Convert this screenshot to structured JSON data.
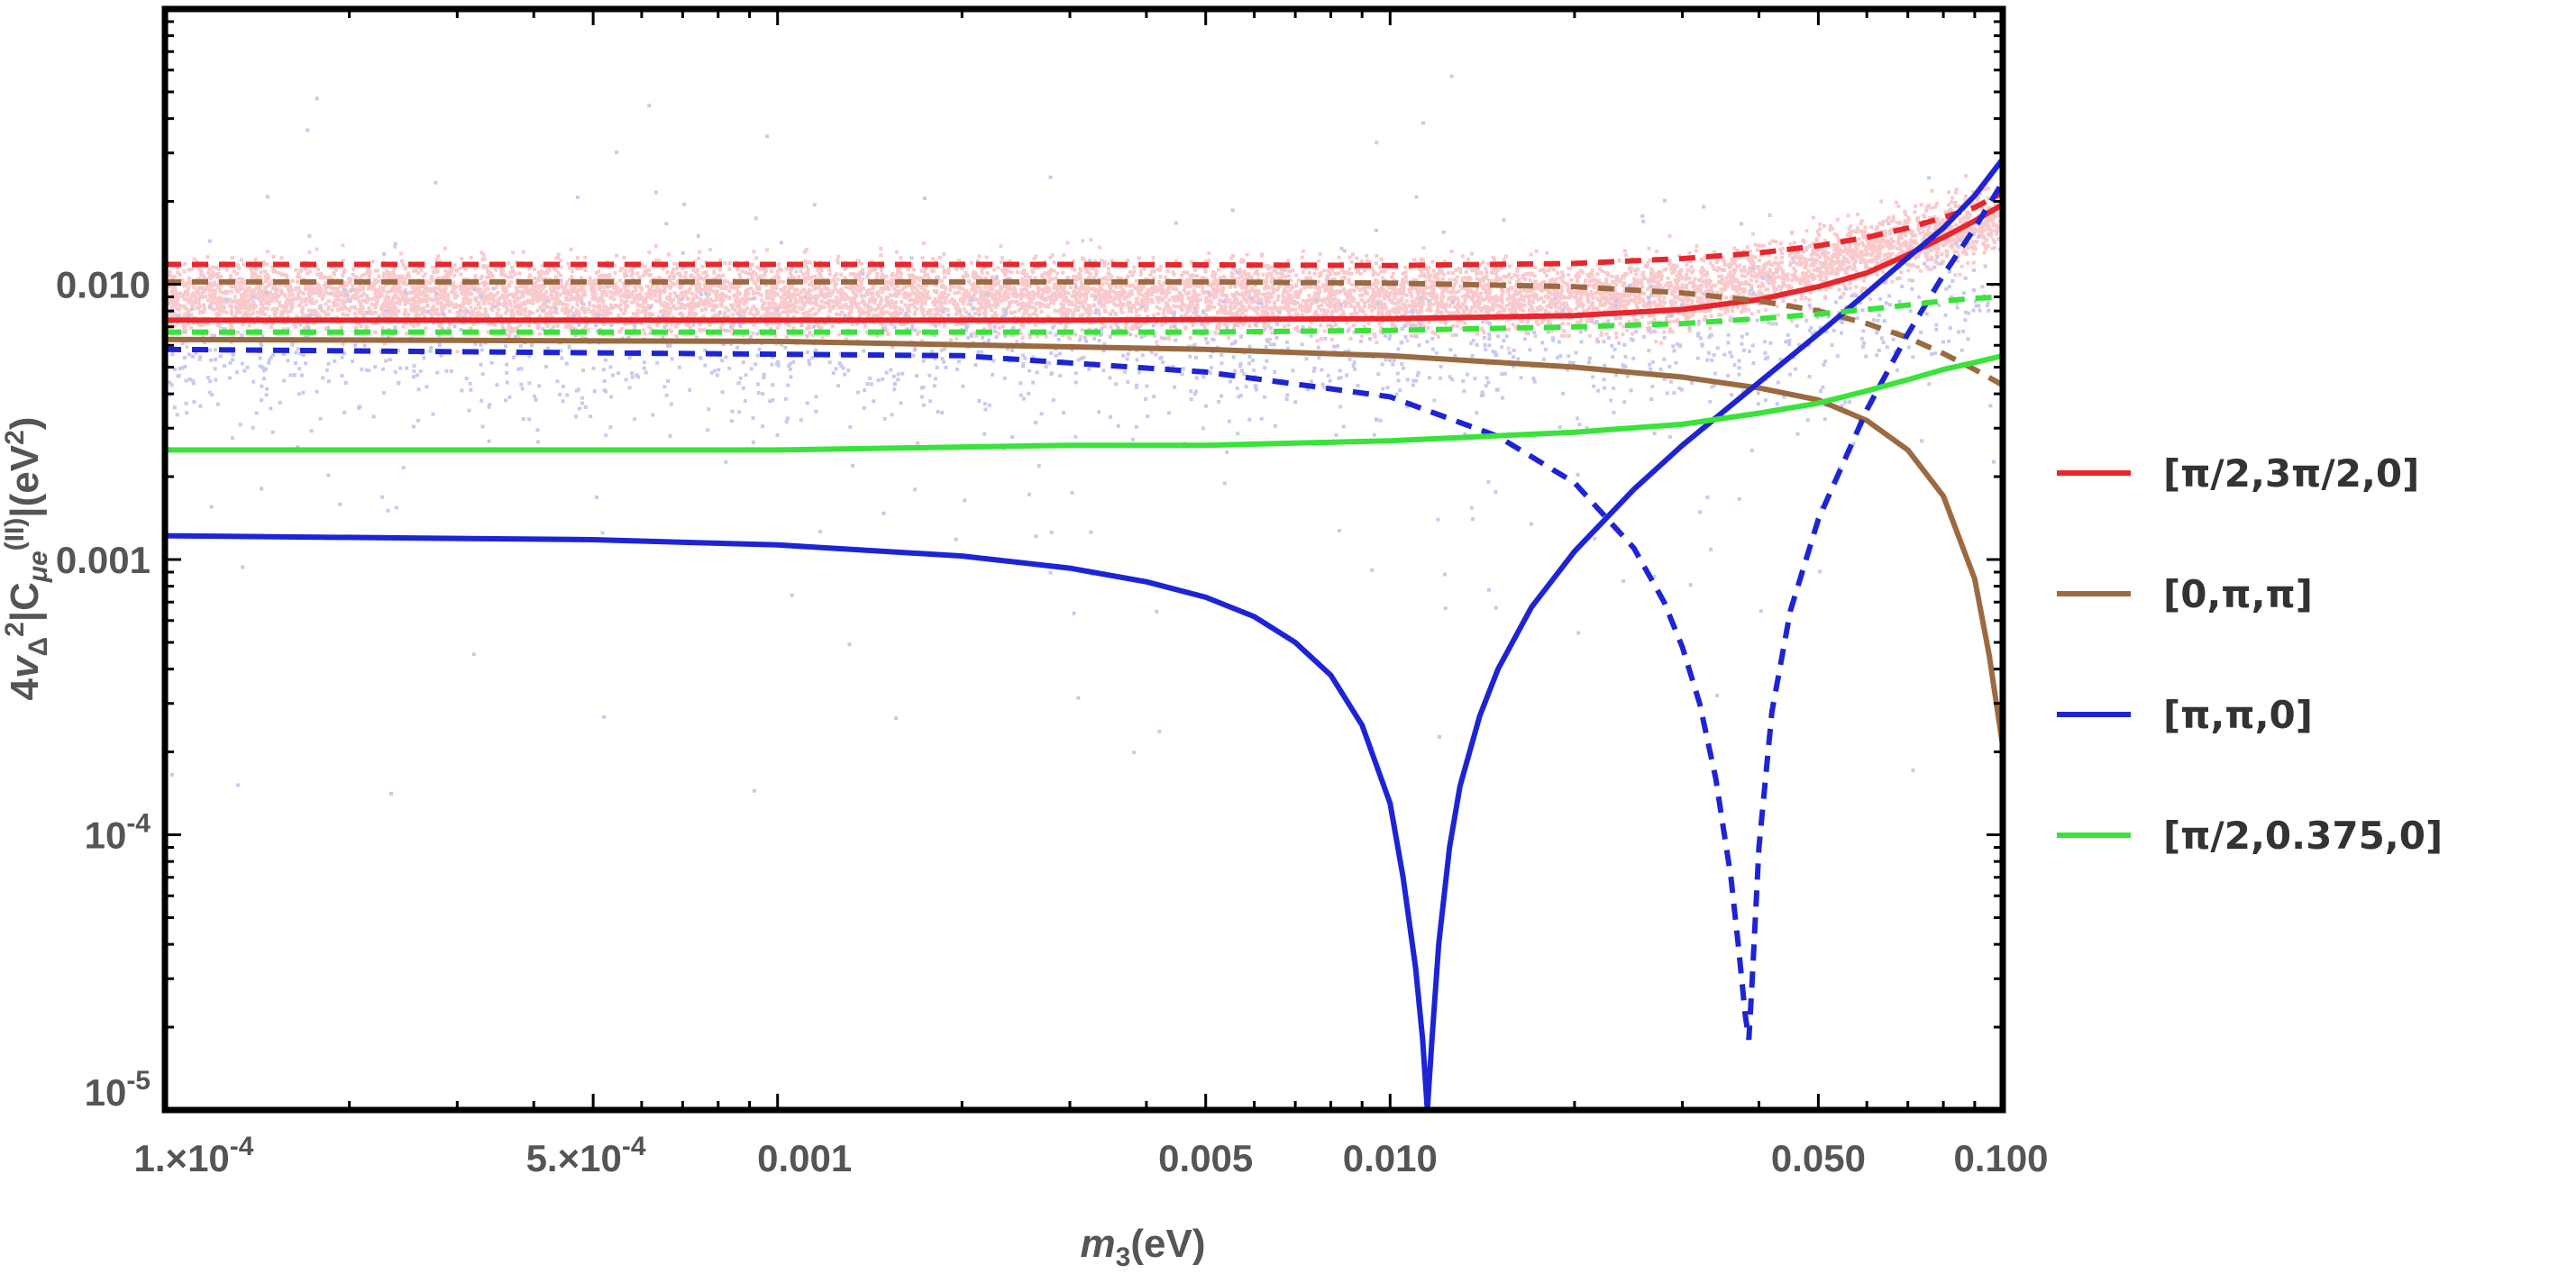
{
  "chart_data": {
    "type": "line",
    "xscale": "log",
    "yscale": "log",
    "xlim": [
      0.0001,
      0.1
    ],
    "ylim": [
      1e-05,
      0.1
    ],
    "grid": false,
    "legend_position": "right",
    "xlabel": {
      "main": "m",
      "sub": "3",
      "rest": "(eV)"
    },
    "ylabel": {
      "pre": "4",
      "v": "v",
      "vsub": "Δ",
      "vsup": "2",
      "mid": "|C",
      "csub": "μe",
      "csup": "(II)",
      "post": "|(eV",
      "unitsup": "2",
      "end": ")"
    },
    "x_ticks": [
      {
        "value": 0.0001,
        "label": "1.×10",
        "exp": "-4"
      },
      {
        "value": 0.0005,
        "label": "5.×10",
        "exp": "-4"
      },
      {
        "value": 0.001,
        "label": "0.001"
      },
      {
        "value": 0.005,
        "label": "0.005"
      },
      {
        "value": 0.01,
        "label": "0.010"
      },
      {
        "value": 0.05,
        "label": "0.050"
      },
      {
        "value": 0.1,
        "label": "0.100"
      }
    ],
    "y_ticks": [
      {
        "value": 0.01,
        "label": "0.010"
      },
      {
        "value": 0.001,
        "label": "0.001"
      },
      {
        "value": 0.0001,
        "label": "10",
        "exp": "-4"
      },
      {
        "value": 1e-05,
        "label": "10",
        "exp": "-5"
      }
    ],
    "series": [
      {
        "name": "[π/2,3π/2,0]",
        "color": "#e8262b",
        "solid": {
          "x": [
            0.0001,
            0.003,
            0.01,
            0.02,
            0.03,
            0.04,
            0.05,
            0.06,
            0.07,
            0.08,
            0.09,
            0.1
          ],
          "y": [
            0.0074,
            0.0074,
            0.0075,
            0.0077,
            0.0081,
            0.0088,
            0.0098,
            0.011,
            0.0128,
            0.0148,
            0.017,
            0.0195
          ]
        },
        "dashed": {
          "x": [
            0.0001,
            0.003,
            0.01,
            0.02,
            0.03,
            0.04,
            0.05,
            0.06,
            0.07,
            0.08,
            0.09,
            0.1
          ],
          "y": [
            0.0118,
            0.0118,
            0.0117,
            0.0119,
            0.0124,
            0.013,
            0.0138,
            0.0148,
            0.016,
            0.0175,
            0.019,
            0.0215
          ]
        }
      },
      {
        "name": "[0,π,π]",
        "color": "#9b6a40",
        "solid": {
          "x": [
            0.0001,
            0.001,
            0.005,
            0.01,
            0.02,
            0.03,
            0.04,
            0.05,
            0.06,
            0.07,
            0.08,
            0.09,
            0.095,
            0.1
          ],
          "y": [
            0.0063,
            0.0062,
            0.0058,
            0.0055,
            0.005,
            0.0046,
            0.0042,
            0.0038,
            0.0032,
            0.0025,
            0.0017,
            0.00085,
            0.00045,
            0.00021
          ]
        },
        "dashed": {
          "x": [
            0.0001,
            0.005,
            0.01,
            0.02,
            0.03,
            0.04,
            0.05,
            0.06,
            0.07,
            0.08,
            0.09,
            0.1
          ],
          "y": [
            0.0102,
            0.0102,
            0.0101,
            0.0098,
            0.0093,
            0.0087,
            0.008,
            0.0072,
            0.0064,
            0.0056,
            0.0049,
            0.0043
          ]
        }
      },
      {
        "name": "[π,π,0]",
        "color": "#1d24d6",
        "solid": {
          "x": [
            0.0001,
            0.0005,
            0.001,
            0.002,
            0.003,
            0.004,
            0.005,
            0.006,
            0.007,
            0.008,
            0.009,
            0.01,
            0.0105,
            0.011,
            0.0113,
            0.0115,
            0.0117,
            0.012,
            0.0125,
            0.013,
            0.014,
            0.015,
            0.017,
            0.02,
            0.025,
            0.03,
            0.04,
            0.05,
            0.06,
            0.07,
            0.08,
            0.09,
            0.1
          ],
          "y": [
            0.00122,
            0.00118,
            0.00113,
            0.00103,
            0.00093,
            0.00083,
            0.00073,
            0.00062,
            0.0005,
            0.00038,
            0.00025,
            0.00013,
            7e-05,
            3.3e-05,
            1.8e-05,
            1e-05,
            1.8e-05,
            4e-05,
            9e-05,
            0.00015,
            0.00027,
            0.0004,
            0.00067,
            0.00107,
            0.0018,
            0.0026,
            0.0044,
            0.0066,
            0.0093,
            0.0125,
            0.016,
            0.021,
            0.0285
          ]
        },
        "dashed": {
          "x": [
            0.0001,
            0.002,
            0.005,
            0.01,
            0.015,
            0.02,
            0.025,
            0.028,
            0.03,
            0.032,
            0.034,
            0.036,
            0.037,
            0.038,
            0.0385,
            0.039,
            0.04,
            0.042,
            0.045,
            0.05,
            0.06,
            0.07,
            0.08,
            0.09,
            0.1
          ],
          "y": [
            0.0058,
            0.0055,
            0.0048,
            0.0039,
            0.0028,
            0.0019,
            0.0011,
            0.0007,
            0.00048,
            0.0003,
            0.00016,
            7e-05,
            4e-05,
            2.2e-05,
            1.8e-05,
            3e-05,
            9e-05,
            0.00028,
            0.00065,
            0.0014,
            0.0035,
            0.0066,
            0.0108,
            0.016,
            0.0235
          ]
        }
      },
      {
        "name": "[π/2,0.375,0]",
        "color": "#39e33a",
        "solid": {
          "x": [
            0.0001,
            0.001,
            0.003,
            0.005,
            0.01,
            0.02,
            0.03,
            0.04,
            0.05,
            0.06,
            0.07,
            0.08,
            0.09,
            0.1
          ],
          "y": [
            0.0025,
            0.0025,
            0.0026,
            0.0026,
            0.0027,
            0.0029,
            0.0031,
            0.0034,
            0.0037,
            0.0041,
            0.0045,
            0.0049,
            0.0052,
            0.0055
          ]
        },
        "dashed": {
          "x": [
            0.0001,
            0.005,
            0.01,
            0.02,
            0.03,
            0.04,
            0.05,
            0.06,
            0.07,
            0.08,
            0.09,
            0.1
          ],
          "y": [
            0.0067,
            0.0067,
            0.0068,
            0.007,
            0.0072,
            0.0075,
            0.0078,
            0.0081,
            0.0084,
            0.0087,
            0.0089,
            0.009
          ]
        }
      }
    ],
    "scatter_colors": {
      "pink": "#f9c9cc",
      "lavender": "#c9c9ee"
    }
  }
}
